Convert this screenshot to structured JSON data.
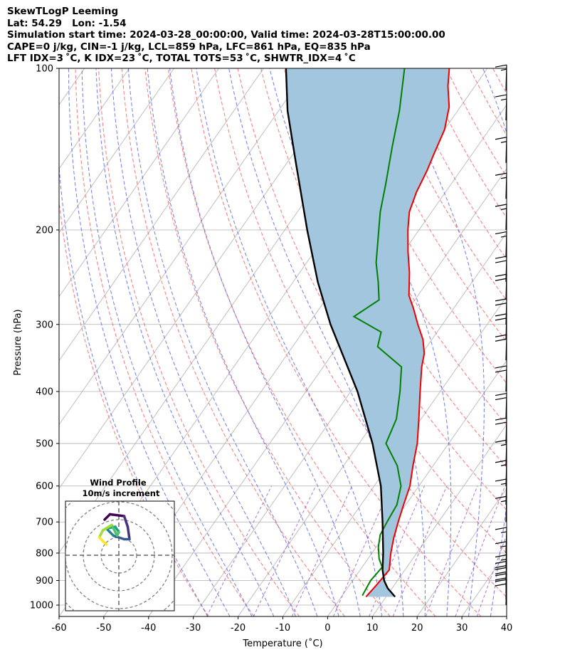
{
  "header": {
    "line1": "SkewTLogP Leeming",
    "line2": "Lat: 54.29   Lon: -1.54",
    "line3": "Simulation start time: 2024-03-28_00:00:00, Valid time: 2024-03-28T15:00:00.00",
    "line4": "CAPE=0 j/kg, CIN=-1 j/kg, LCL=859 hPa, LFC=861 hPa, EQ=835 hPa",
    "line5": "LFT IDX=3 ˚C, K IDX=23 ˚C, TOTAL TOTS=53 ˚C, SHWTR_IDX=4 ˚C"
  },
  "colors": {
    "temperature": "#ee0000",
    "dewpoint": "#008000",
    "parcel": "#000000",
    "cin_fill": "#a3c6df",
    "dry_adiabat": "#ff6060",
    "moist_adiabat": "#4a5cf0",
    "mixing_ratio": "#9040cc",
    "isotherm": "#b0b0b0",
    "isobar": "#b0b0b0"
  },
  "chart_data": {
    "type": "skew-t log-p",
    "xlabel": "Temperature (˚C)",
    "ylabel": "Pressure (hPa)",
    "xlim": [
      -60,
      40
    ],
    "ylim": [
      1050,
      100
    ],
    "y_scale": "log",
    "x_ticks": [
      -60,
      -50,
      -40,
      -30,
      -20,
      -10,
      0,
      10,
      20,
      30,
      40
    ],
    "y_ticks": [
      1000,
      900,
      800,
      700,
      600,
      500,
      400,
      300,
      200,
      100
    ],
    "grid": true,
    "temperature_profile": [
      {
        "p": 965,
        "t": 5.5
      },
      {
        "p": 920,
        "t": 6.0
      },
      {
        "p": 860,
        "t": 6.5
      },
      {
        "p": 800,
        "t": 4.2
      },
      {
        "p": 750,
        "t": 2.5
      },
      {
        "p": 700,
        "t": 1.0
      },
      {
        "p": 650,
        "t": -0.5
      },
      {
        "p": 600,
        "t": -2.0
      },
      {
        "p": 550,
        "t": -4.5
      },
      {
        "p": 500,
        "t": -7.0
      },
      {
        "p": 450,
        "t": -10.5
      },
      {
        "p": 400,
        "t": -14.5
      },
      {
        "p": 360,
        "t": -18.0
      },
      {
        "p": 340,
        "t": -19.5
      },
      {
        "p": 320,
        "t": -22.0
      },
      {
        "p": 300,
        "t": -25.5
      },
      {
        "p": 280,
        "t": -29.0
      },
      {
        "p": 265,
        "t": -32.0
      },
      {
        "p": 240,
        "t": -35.5
      },
      {
        "p": 220,
        "t": -39.0
      },
      {
        "p": 200,
        "t": -42.5
      },
      {
        "p": 185,
        "t": -45.0
      },
      {
        "p": 170,
        "t": -46.5
      },
      {
        "p": 155,
        "t": -47.5
      },
      {
        "p": 145,
        "t": -48.5
      },
      {
        "p": 130,
        "t": -50.0
      },
      {
        "p": 118,
        "t": -52.5
      },
      {
        "p": 108,
        "t": -56.0
      },
      {
        "p": 100,
        "t": -58.5
      }
    ],
    "dewpoint_profile": [
      {
        "p": 960,
        "t": 4.5
      },
      {
        "p": 900,
        "t": 4.0
      },
      {
        "p": 850,
        "t": 4.5
      },
      {
        "p": 820,
        "t": 2.5
      },
      {
        "p": 780,
        "t": 0.5
      },
      {
        "p": 740,
        "t": -1.0
      },
      {
        "p": 700,
        "t": -1.5
      },
      {
        "p": 650,
        "t": -2.0
      },
      {
        "p": 600,
        "t": -4.0
      },
      {
        "p": 550,
        "t": -8.0
      },
      {
        "p": 500,
        "t": -14.0
      },
      {
        "p": 450,
        "t": -15.5
      },
      {
        "p": 400,
        "t": -19.0
      },
      {
        "p": 360,
        "t": -22.5
      },
      {
        "p": 330,
        "t": -31.0
      },
      {
        "p": 310,
        "t": -32.5
      },
      {
        "p": 290,
        "t": -41.0
      },
      {
        "p": 270,
        "t": -38.0
      },
      {
        "p": 250,
        "t": -41.0
      },
      {
        "p": 230,
        "t": -44.5
      },
      {
        "p": 200,
        "t": -49.0
      },
      {
        "p": 185,
        "t": -51.5
      },
      {
        "p": 165,
        "t": -54.5
      },
      {
        "p": 140,
        "t": -59.0
      },
      {
        "p": 120,
        "t": -63.0
      },
      {
        "p": 100,
        "t": -68.5
      }
    ],
    "parcel_profile": [
      {
        "p": 965,
        "t": 12.0
      },
      {
        "p": 930,
        "t": 9.0
      },
      {
        "p": 900,
        "t": 7.0
      },
      {
        "p": 860,
        "t": 5.0
      },
      {
        "p": 800,
        "t": 2.5
      },
      {
        "p": 700,
        "t": -2.5
      },
      {
        "p": 600,
        "t": -8.5
      },
      {
        "p": 500,
        "t": -17.0
      },
      {
        "p": 400,
        "t": -28.5
      },
      {
        "p": 300,
        "t": -45.0
      },
      {
        "p": 250,
        "t": -54.5
      },
      {
        "p": 200,
        "t": -65.0
      },
      {
        "p": 150,
        "t": -78.0
      },
      {
        "p": 120,
        "t": -88.0
      },
      {
        "p": 100,
        "t": -95.0
      }
    ],
    "wind_barbs": [
      {
        "p": 1000,
        "speed_kt": 20
      },
      {
        "p": 975,
        "speed_kt": 20
      },
      {
        "p": 950,
        "speed_kt": 20
      },
      {
        "p": 925,
        "speed_kt": 20
      },
      {
        "p": 900,
        "speed_kt": 15
      },
      {
        "p": 850,
        "speed_kt": 15
      },
      {
        "p": 800,
        "speed_kt": 15
      },
      {
        "p": 700,
        "speed_kt": 15
      },
      {
        "p": 650,
        "speed_kt": 15
      },
      {
        "p": 600,
        "speed_kt": 15
      },
      {
        "p": 550,
        "speed_kt": 15
      },
      {
        "p": 500,
        "speed_kt": 20
      },
      {
        "p": 450,
        "speed_kt": 20
      },
      {
        "p": 400,
        "speed_kt": 20
      },
      {
        "p": 350,
        "speed_kt": 20
      },
      {
        "p": 320,
        "speed_kt": 20
      },
      {
        "p": 300,
        "speed_kt": 20
      },
      {
        "p": 270,
        "speed_kt": 20
      },
      {
        "p": 250,
        "speed_kt": 20
      },
      {
        "p": 225,
        "speed_kt": 15
      },
      {
        "p": 200,
        "speed_kt": 15
      },
      {
        "p": 175,
        "speed_kt": 15
      },
      {
        "p": 150,
        "speed_kt": 15
      },
      {
        "p": 125,
        "speed_kt": 15
      },
      {
        "p": 110,
        "speed_kt": 15
      }
    ],
    "inset": {
      "title_line1": "Wind Profile",
      "title_line2": "10m/s increment",
      "type": "hodograph",
      "points": [
        {
          "u": -0.8,
          "v": 2.0
        },
        {
          "u": -0.5,
          "v": 2.3
        },
        {
          "u": 0.3,
          "v": 2.2
        },
        {
          "u": 0.5,
          "v": 1.6
        },
        {
          "u": 0.6,
          "v": 0.9
        },
        {
          "u": 0.3,
          "v": 0.9
        },
        {
          "u": -0.3,
          "v": 1.1
        },
        {
          "u": -0.7,
          "v": 1.5
        },
        {
          "u": -0.2,
          "v": 1.6
        },
        {
          "u": 0.0,
          "v": 1.3
        },
        {
          "u": -0.1,
          "v": 1.1
        },
        {
          "u": -0.4,
          "v": 1.7
        },
        {
          "u": -0.9,
          "v": 1.4
        },
        {
          "u": -1.1,
          "v": 1.0
        },
        {
          "u": -0.7,
          "v": 0.6
        }
      ]
    }
  }
}
